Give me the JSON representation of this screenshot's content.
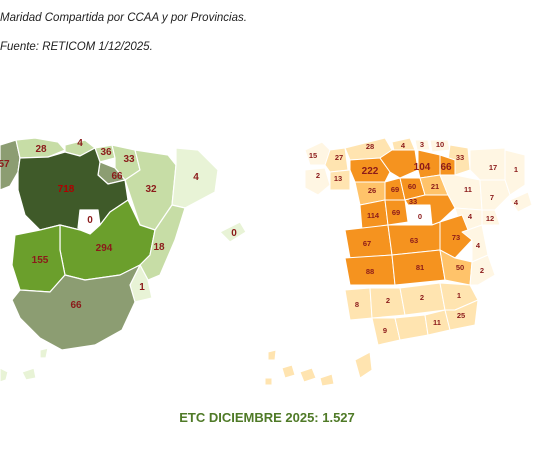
{
  "caption": {
    "line1": "Maridad Compartida por CCAA y por Provincias.",
    "line2": "Fuente: RETICOM 1/12/2025."
  },
  "total": "ETC DICIEMBRE 2025: 1.527",
  "colors": {
    "ccaa": [
      "#3f5a29",
      "#6b9f2c",
      "#8cb55a",
      "#8c9d72",
      "#c7dda6",
      "#e8f3d6"
    ],
    "prov": [
      "#f5931f",
      "#ffc36a",
      "#ffe4b0",
      "#fff6e3"
    ]
  },
  "ccaa_map": {
    "galicia": "57",
    "asturias": "28",
    "cantabria": "4",
    "pais_vasco": "36",
    "navarra": "33",
    "rioja": "66",
    "aragon": "32",
    "cataluna": "4",
    "castilla_leon": "718",
    "madrid": "0",
    "castilla_la_mancha": "294",
    "valencia": "18",
    "baleares": "0",
    "extremadura": "155",
    "murcia": "1",
    "andalucia": "66"
  },
  "province_map": {
    "labels": [
      "15",
      "27",
      "28",
      "4",
      "3",
      "10",
      "2",
      "13",
      "222",
      "104",
      "66",
      "33",
      "17",
      "1",
      "26",
      "69",
      "60",
      "21",
      "11",
      "7",
      "114",
      "69",
      "0",
      "33",
      "4",
      "12",
      "67",
      "63",
      "73",
      "4",
      "88",
      "81",
      "50",
      "2",
      "8",
      "2",
      "2",
      "1",
      "9",
      "11",
      "25",
      "4"
    ]
  }
}
